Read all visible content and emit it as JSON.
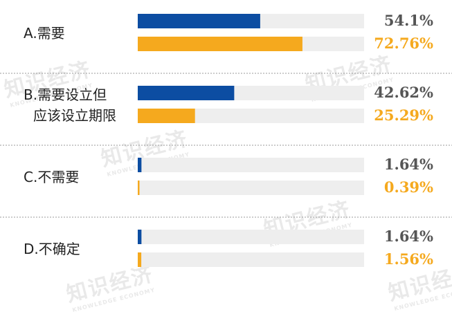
{
  "chart_data": {
    "type": "bar",
    "orientation": "horizontal",
    "categories": [
      [
        "A.需要"
      ],
      [
        "B.需要设立但",
        "应该设立期限"
      ],
      [
        "C.不需要"
      ],
      [
        "D.不确定"
      ]
    ],
    "series": [
      {
        "values": [
          54.1,
          42.62,
          1.64,
          1.64
        ],
        "labels": [
          "54.1%",
          "42.62%",
          "1.64%",
          "1.64%"
        ],
        "color": "#0c4da2"
      },
      {
        "values": [
          72.76,
          25.29,
          0.39,
          1.56
        ],
        "labels": [
          "72.76%",
          "25.29%",
          "0.39%",
          "1.56%"
        ],
        "color": "#f5a91e"
      }
    ],
    "xlim": [
      0,
      100
    ],
    "track_color": "#eeeeee",
    "label_color_series1": "#555555",
    "grid": false,
    "legend": "none"
  },
  "watermark": {
    "text": "知识经济",
    "subtext": "KNOWLEDGE ECONOMY"
  }
}
